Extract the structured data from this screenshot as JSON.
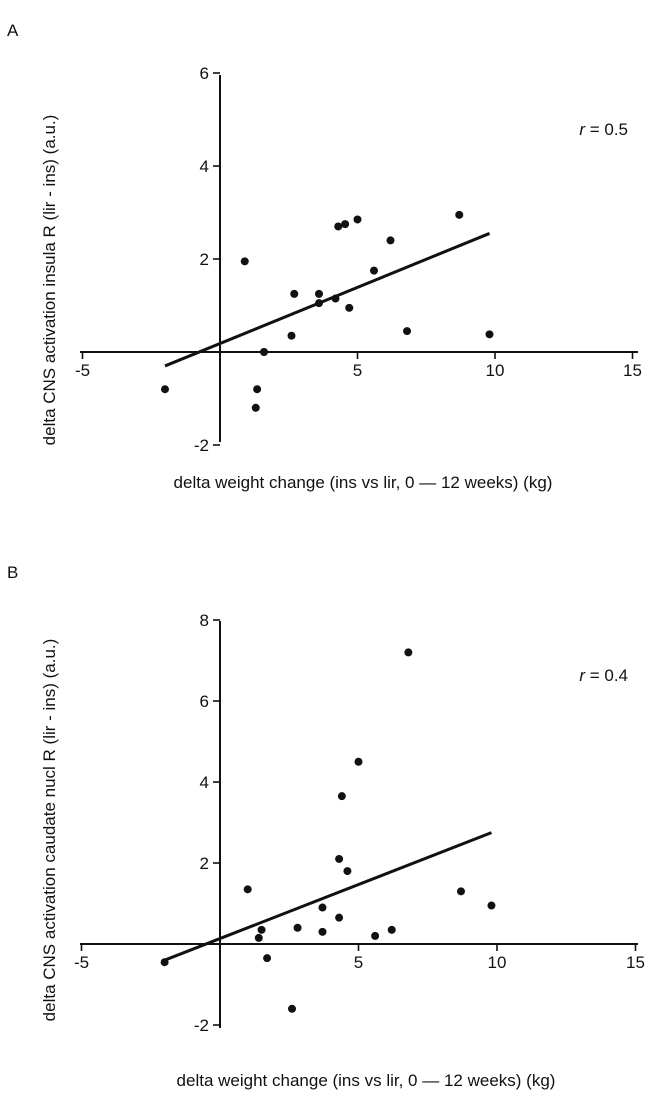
{
  "panels": [
    {
      "letter": "A",
      "stat_label": "r",
      "stat_value": " = 0.5",
      "chart_data": {
        "type": "scatter",
        "xlabel": "delta weight change (ins vs lir, 0 — 12 weeks) (kg)",
        "ylabel": "delta CNS activation insula R (lir - ins)  (a.u.)",
        "xlim": [
          -5,
          15
        ],
        "ylim": [
          -2,
          6
        ],
        "x_ticks": [
          "-5",
          "5",
          "10",
          "15"
        ],
        "y_ticks": [
          "-2",
          "2",
          "4",
          "6"
        ],
        "annotation": "r = 0.5",
        "points": [
          {
            "x": -2.0,
            "y": -0.8
          },
          {
            "x": 0.9,
            "y": 1.95
          },
          {
            "x": 1.3,
            "y": -1.2
          },
          {
            "x": 1.35,
            "y": -0.8
          },
          {
            "x": 1.6,
            "y": 0.0
          },
          {
            "x": 2.6,
            "y": 0.35
          },
          {
            "x": 2.7,
            "y": 1.25
          },
          {
            "x": 3.6,
            "y": 1.05
          },
          {
            "x": 3.6,
            "y": 1.25
          },
          {
            "x": 4.2,
            "y": 1.15
          },
          {
            "x": 4.3,
            "y": 2.7
          },
          {
            "x": 4.55,
            "y": 2.75
          },
          {
            "x": 4.7,
            "y": 0.95
          },
          {
            "x": 5.0,
            "y": 2.85
          },
          {
            "x": 5.6,
            "y": 1.75
          },
          {
            "x": 6.2,
            "y": 2.4
          },
          {
            "x": 6.8,
            "y": 0.45
          },
          {
            "x": 8.7,
            "y": 2.95
          },
          {
            "x": 9.8,
            "y": 0.38
          }
        ],
        "fit_line": {
          "x": [
            -2.0,
            9.8
          ],
          "y": [
            -0.3,
            2.55
          ]
        }
      }
    },
    {
      "letter": "B",
      "stat_label": "r",
      "stat_value": " = 0.4",
      "chart_data": {
        "type": "scatter",
        "xlabel": "delta weight change (ins vs lir, 0 — 12 weeks) (kg)",
        "ylabel": "delta CNS activation caudate nucl R (lir - ins) (a.u.)",
        "xlim": [
          -5,
          15
        ],
        "ylim": [
          -2,
          8
        ],
        "x_ticks": [
          "-5",
          "5",
          "10",
          "15"
        ],
        "y_ticks": [
          "-2",
          "2",
          "4",
          "6",
          "8"
        ],
        "annotation": "r = 0.4",
        "points": [
          {
            "x": -2.0,
            "y": -0.45
          },
          {
            "x": 1.0,
            "y": 1.35
          },
          {
            "x": 1.4,
            "y": 0.15
          },
          {
            "x": 1.5,
            "y": 0.35
          },
          {
            "x": 1.7,
            "y": -0.35
          },
          {
            "x": 2.6,
            "y": -1.6
          },
          {
            "x": 2.8,
            "y": 0.4
          },
          {
            "x": 3.7,
            "y": 0.3
          },
          {
            "x": 3.7,
            "y": 0.9
          },
          {
            "x": 4.3,
            "y": 0.65
          },
          {
            "x": 4.3,
            "y": 2.1
          },
          {
            "x": 4.4,
            "y": 3.65
          },
          {
            "x": 4.6,
            "y": 1.8
          },
          {
            "x": 5.0,
            "y": 4.5
          },
          {
            "x": 5.6,
            "y": 0.2
          },
          {
            "x": 6.2,
            "y": 0.35
          },
          {
            "x": 6.8,
            "y": 7.2
          },
          {
            "x": 8.7,
            "y": 1.3
          },
          {
            "x": 9.8,
            "y": 0.95
          }
        ],
        "fit_line": {
          "x": [
            -2.0,
            9.8
          ],
          "y": [
            -0.4,
            2.75
          ]
        }
      }
    }
  ]
}
